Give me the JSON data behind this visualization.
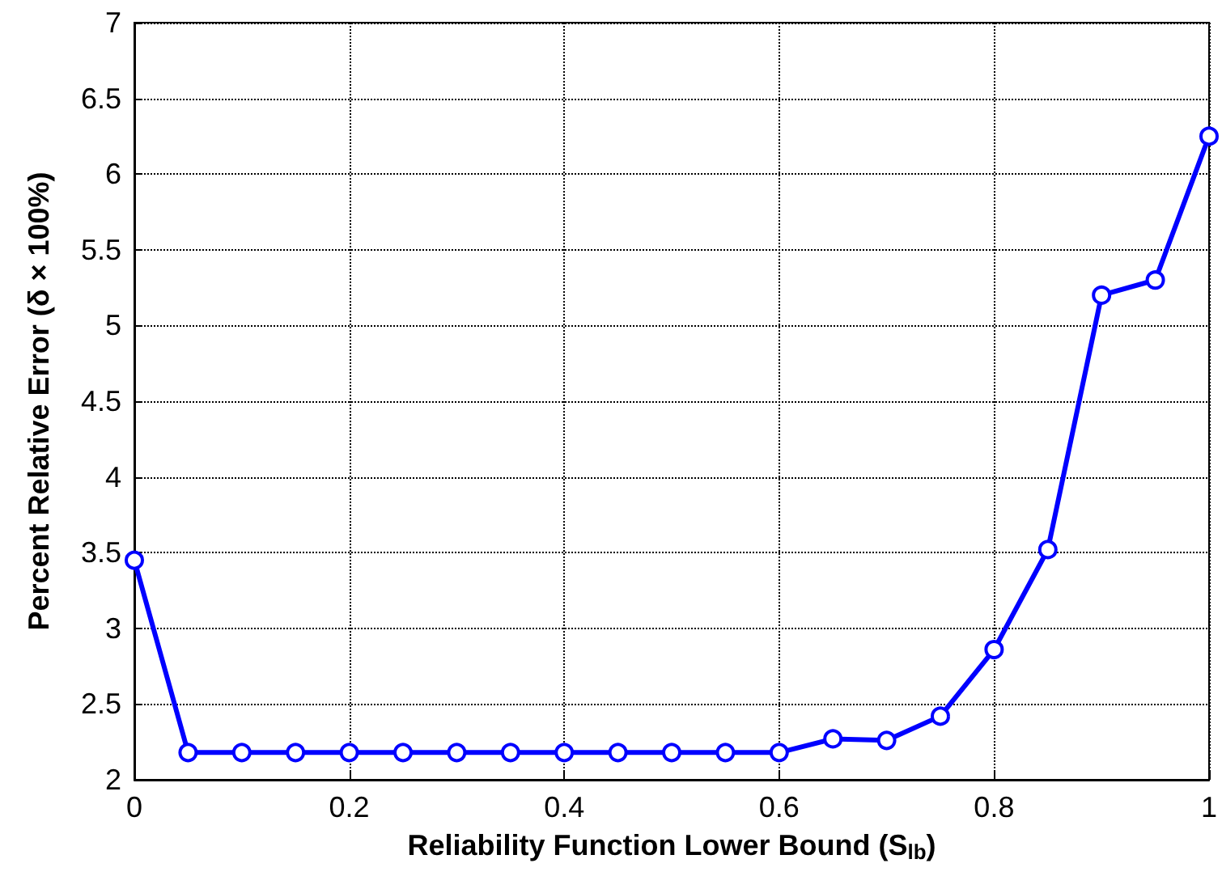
{
  "chart_data": {
    "type": "line",
    "xlabel": "Reliability Function Lower Bound (S$_{lb}$)",
    "ylabel": "Percent Relative Error (δ × 100%)",
    "x": [
      0,
      0.05,
      0.1,
      0.15,
      0.2,
      0.25,
      0.3,
      0.35,
      0.4,
      0.45,
      0.5,
      0.55,
      0.6,
      0.65,
      0.7,
      0.75,
      0.8,
      0.85,
      0.9,
      0.95,
      1
    ],
    "series": [
      {
        "color": "#0000ff",
        "values": [
          3.45,
          2.18,
          2.18,
          2.18,
          2.18,
          2.18,
          2.18,
          2.18,
          2.18,
          2.18,
          2.18,
          2.18,
          2.18,
          2.27,
          2.26,
          2.42,
          2.86,
          3.52,
          5.2,
          5.3,
          6.25
        ]
      }
    ],
    "xlim": [
      0,
      1
    ],
    "xticks": [
      0,
      0.2,
      0.4,
      0.6,
      0.8,
      1
    ],
    "ylim": [
      2,
      7
    ],
    "yticks": [
      2,
      2.5,
      3,
      3.5,
      4,
      4.5,
      5,
      5.5,
      6,
      6.5,
      7
    ],
    "grid": true,
    "marker": "circle",
    "line_style": "solid"
  }
}
